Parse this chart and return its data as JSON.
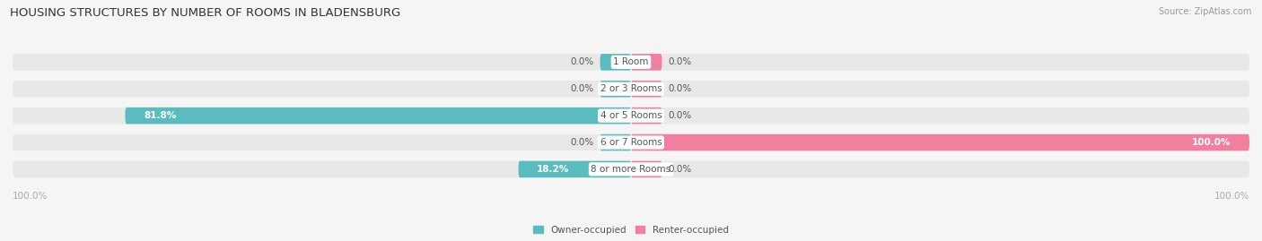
{
  "title": "HOUSING STRUCTURES BY NUMBER OF ROOMS IN BLADENSBURG",
  "source": "Source: ZipAtlas.com",
  "categories": [
    "1 Room",
    "2 or 3 Rooms",
    "4 or 5 Rooms",
    "6 or 7 Rooms",
    "8 or more Rooms"
  ],
  "owner_values": [
    0.0,
    0.0,
    81.8,
    0.0,
    18.2
  ],
  "renter_values": [
    0.0,
    0.0,
    0.0,
    100.0,
    0.0
  ],
  "owner_color": "#5bbcbf",
  "renter_color": "#f07fa0",
  "bar_bg_color": "#e8e8e8",
  "bar_height": 0.62,
  "figsize": [
    14.06,
    2.69
  ],
  "dpi": 100,
  "title_fontsize": 9.5,
  "label_fontsize": 7.5,
  "category_fontsize": 7.5,
  "axis_label_color": "#aaaaaa",
  "text_color": "#555555",
  "bg_color": "#f5f5f5",
  "small_bar_size": 5.0
}
